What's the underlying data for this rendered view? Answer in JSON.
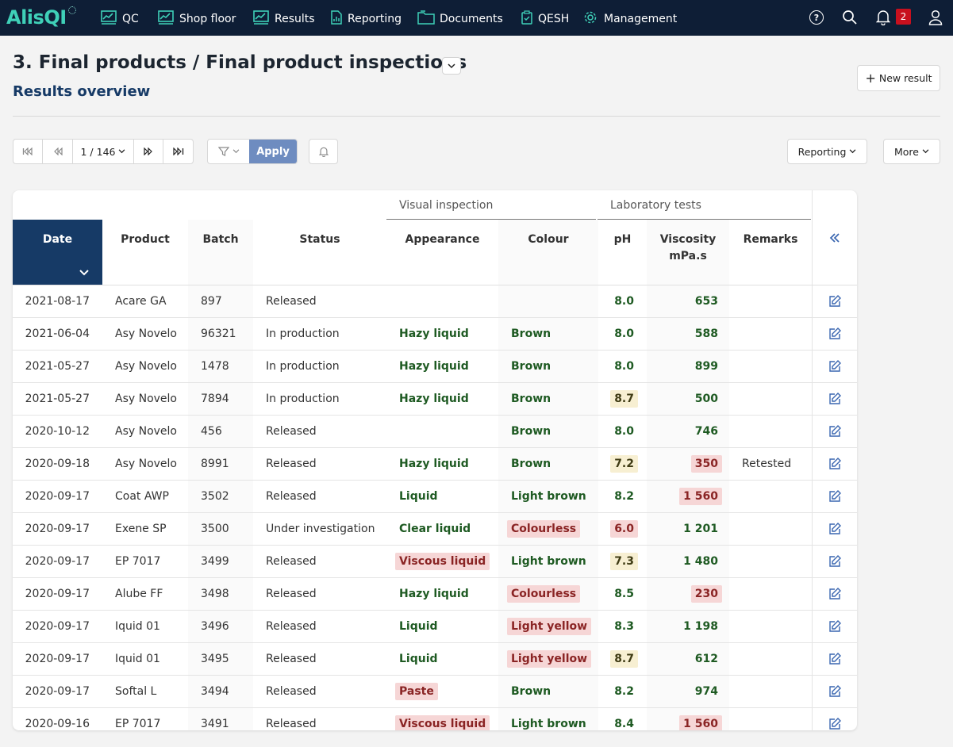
{
  "brand": {
    "logo_text": "AlisQI"
  },
  "nav": [
    {
      "label": "QC",
      "icon": "chart-icon"
    },
    {
      "label": "Shop floor",
      "icon": "chart-icon"
    },
    {
      "label": "Results",
      "icon": "chart-icon"
    },
    {
      "label": "Reporting",
      "icon": "document-chart-icon"
    },
    {
      "label": "Documents",
      "icon": "folder-icon"
    },
    {
      "label": "QESH",
      "icon": "clipboard-check-icon"
    },
    {
      "label": "Management",
      "icon": "gear-icon"
    }
  ],
  "header_icons": {
    "notifications_count": "2"
  },
  "page": {
    "title": "3. Final products / Final product inspections",
    "subtitle": "Results overview",
    "new_result_label": "New result"
  },
  "toolbar": {
    "page_indicator": "1 / 146",
    "apply_label": "Apply",
    "reporting_label": "Reporting",
    "more_label": "More"
  },
  "table": {
    "group_headers": {
      "visual": "Visual inspection",
      "lab": "Laboratory tests"
    },
    "columns": {
      "date": "Date",
      "product": "Product",
      "batch": "Batch",
      "status": "Status",
      "appearance": "Appearance",
      "colour": "Colour",
      "ph": "pH",
      "viscosity": "Viscosity",
      "viscosity_unit": "mPa.s",
      "remarks": "Remarks"
    },
    "rows": [
      {
        "date": "2021-08-17",
        "product": "Acare GA",
        "batch": "897",
        "status": "Released",
        "appearance": "",
        "appearance_flag": "ok",
        "colour": "",
        "colour_flag": "ok",
        "ph": "8.0",
        "ph_flag": "ok",
        "viscosity": "653",
        "viscosity_flag": "ok",
        "remarks": ""
      },
      {
        "date": "2021-06-04",
        "product": "Asy Novelo",
        "batch": "96321",
        "status": "In production",
        "appearance": "Hazy liquid",
        "appearance_flag": "ok",
        "colour": "Brown",
        "colour_flag": "ok",
        "ph": "8.0",
        "ph_flag": "ok",
        "viscosity": "588",
        "viscosity_flag": "ok",
        "remarks": ""
      },
      {
        "date": "2021-05-27",
        "product": "Asy Novelo",
        "batch": "1478",
        "status": "In production",
        "appearance": "Hazy liquid",
        "appearance_flag": "ok",
        "colour": "Brown",
        "colour_flag": "ok",
        "ph": "8.0",
        "ph_flag": "ok",
        "viscosity": "899",
        "viscosity_flag": "ok",
        "remarks": ""
      },
      {
        "date": "2021-05-27",
        "product": "Asy Novelo",
        "batch": "7894",
        "status": "In production",
        "appearance": "Hazy liquid",
        "appearance_flag": "ok",
        "colour": "Brown",
        "colour_flag": "ok",
        "ph": "8.7",
        "ph_flag": "warn",
        "viscosity": "500",
        "viscosity_flag": "ok",
        "remarks": ""
      },
      {
        "date": "2020-10-12",
        "product": "Asy Novelo",
        "batch": "456",
        "status": "Released",
        "appearance": "",
        "appearance_flag": "ok",
        "colour": "Brown",
        "colour_flag": "ok",
        "ph": "8.0",
        "ph_flag": "ok",
        "viscosity": "746",
        "viscosity_flag": "ok",
        "remarks": ""
      },
      {
        "date": "2020-09-18",
        "product": "Asy Novelo",
        "batch": "8991",
        "status": "Released",
        "appearance": "Hazy liquid",
        "appearance_flag": "ok",
        "colour": "Brown",
        "colour_flag": "ok",
        "ph": "7.2",
        "ph_flag": "warn",
        "viscosity": "350",
        "viscosity_flag": "nok",
        "remarks": "Retested"
      },
      {
        "date": "2020-09-17",
        "product": "Coat AWP",
        "batch": "3502",
        "status": "Released",
        "appearance": "Liquid",
        "appearance_flag": "ok",
        "colour": "Light brown",
        "colour_flag": "ok",
        "ph": "8.2",
        "ph_flag": "ok",
        "viscosity": "1 560",
        "viscosity_flag": "nok",
        "remarks": ""
      },
      {
        "date": "2020-09-17",
        "product": "Exene SP",
        "batch": "3500",
        "status": "Under investigation",
        "appearance": "Clear liquid",
        "appearance_flag": "ok",
        "colour": "Colourless",
        "colour_flag": "nok",
        "ph": "6.0",
        "ph_flag": "nok",
        "viscosity": "1 201",
        "viscosity_flag": "ok",
        "remarks": ""
      },
      {
        "date": "2020-09-17",
        "product": "EP 7017",
        "batch": "3499",
        "status": "Released",
        "appearance": "Viscous liquid",
        "appearance_flag": "nok",
        "colour": "Light brown",
        "colour_flag": "ok",
        "ph": "7.3",
        "ph_flag": "warn",
        "viscosity": "1 480",
        "viscosity_flag": "ok",
        "remarks": ""
      },
      {
        "date": "2020-09-17",
        "product": "Alube FF",
        "batch": "3498",
        "status": "Released",
        "appearance": "Hazy liquid",
        "appearance_flag": "ok",
        "colour": "Colourless",
        "colour_flag": "nok",
        "ph": "8.5",
        "ph_flag": "ok",
        "viscosity": "230",
        "viscosity_flag": "nok",
        "remarks": ""
      },
      {
        "date": "2020-09-17",
        "product": "Iquid 01",
        "batch": "3496",
        "status": "Released",
        "appearance": "Liquid",
        "appearance_flag": "ok",
        "colour": "Light yellow",
        "colour_flag": "nok",
        "ph": "8.3",
        "ph_flag": "ok",
        "viscosity": "1 198",
        "viscosity_flag": "ok",
        "remarks": ""
      },
      {
        "date": "2020-09-17",
        "product": "Iquid 01",
        "batch": "3495",
        "status": "Released",
        "appearance": "Liquid",
        "appearance_flag": "ok",
        "colour": "Light yellow",
        "colour_flag": "nok",
        "ph": "8.7",
        "ph_flag": "warn",
        "viscosity": "612",
        "viscosity_flag": "ok",
        "remarks": ""
      },
      {
        "date": "2020-09-17",
        "product": "Softal L",
        "batch": "3494",
        "status": "Released",
        "appearance": "Paste",
        "appearance_flag": "nok",
        "colour": "Brown",
        "colour_flag": "ok",
        "ph": "8.2",
        "ph_flag": "ok",
        "viscosity": "974",
        "viscosity_flag": "ok",
        "remarks": ""
      },
      {
        "date": "2020-09-16",
        "product": "EP 7017",
        "batch": "3491",
        "status": "Released",
        "appearance": "Viscous liquid",
        "appearance_flag": "nok",
        "colour": "Light brown",
        "colour_flag": "ok",
        "ph": "8.4",
        "ph_flag": "ok",
        "viscosity": "1 560",
        "viscosity_flag": "nok",
        "remarks": ""
      }
    ]
  },
  "colors": {
    "topbar": "#0e1e36",
    "accent_teal": "#3fd0b8",
    "active_header": "#163a66",
    "ok_text": "#1e5a22",
    "nok_bg": "#f6d6d6",
    "warn_bg": "#f7efd2",
    "apply_button": "#6e8cc0"
  }
}
